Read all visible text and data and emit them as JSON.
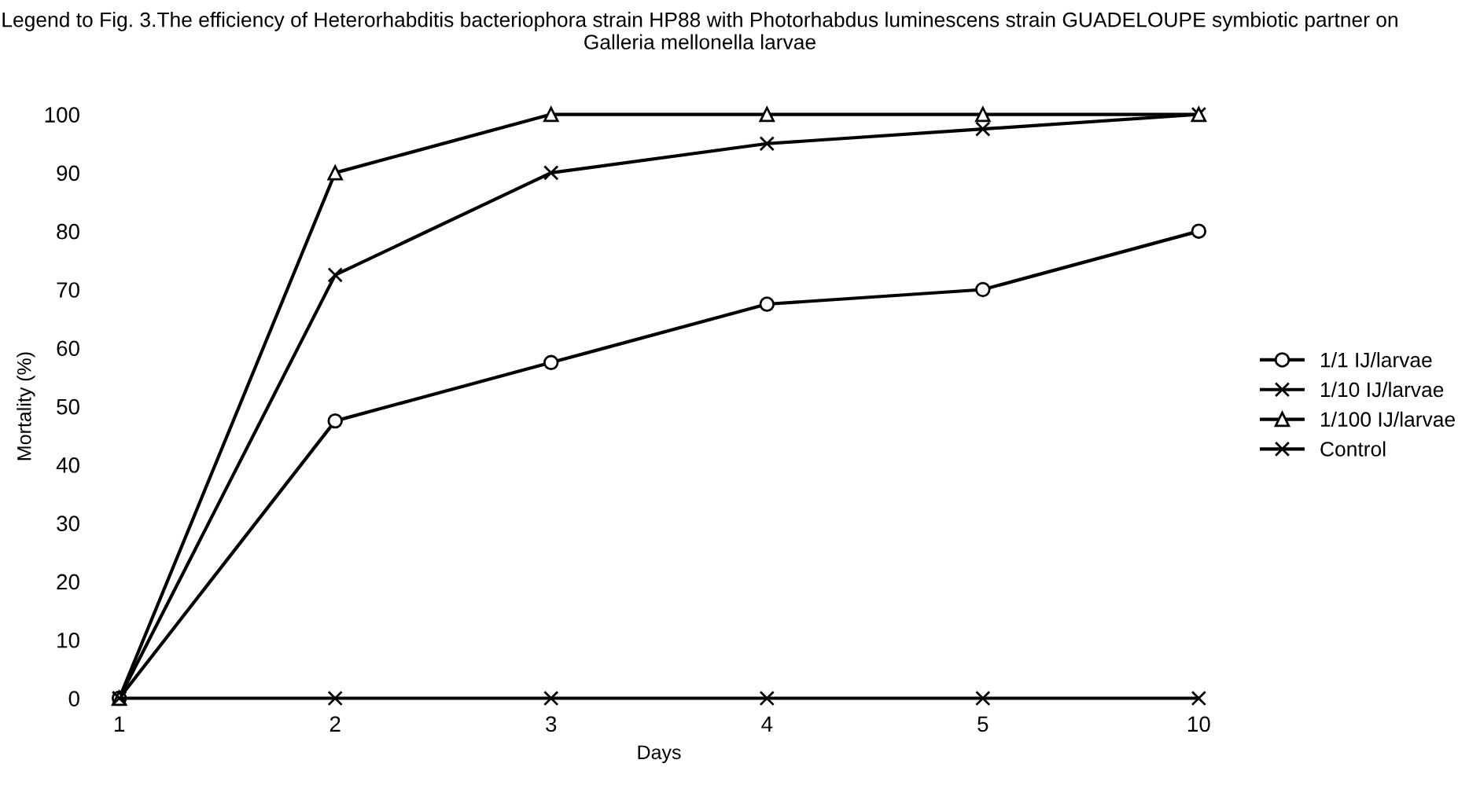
{
  "chart_data": {
    "type": "line",
    "title": "Legend to Fig. 3.The efficiency of Heterorhabditis bacteriophora strain HP88 with Photorhabdus luminescens strain GUADELOUPE symbiotic partner on Galleria mellonella larvae",
    "xlabel": "Days",
    "ylabel": "Mortality (%)",
    "categories": [
      "1",
      "2",
      "3",
      "4",
      "5",
      "10"
    ],
    "ylim": [
      0,
      100
    ],
    "yticks": [
      0,
      10,
      20,
      30,
      40,
      50,
      60,
      70,
      80,
      90,
      100
    ],
    "grid": false,
    "legend": "right",
    "line_style": "solid",
    "series": [
      {
        "name": "1/1 IJ/larvae",
        "color": "#000000",
        "marker": "circle",
        "values": [
          0,
          47.5,
          57.5,
          67.5,
          70,
          80
        ]
      },
      {
        "name": "1/10 IJ/larvae",
        "color": "#000000",
        "marker": "cross",
        "values": [
          0,
          72.5,
          90,
          95,
          97.5,
          100
        ]
      },
      {
        "name": "1/100 IJ/larvae",
        "color": "#000000",
        "marker": "triangle",
        "values": [
          0,
          90,
          100,
          100,
          100,
          100
        ]
      },
      {
        "name": "Control",
        "color": "#000000",
        "marker": "cross",
        "values": [
          0,
          0,
          0,
          0,
          0,
          0
        ]
      }
    ]
  }
}
